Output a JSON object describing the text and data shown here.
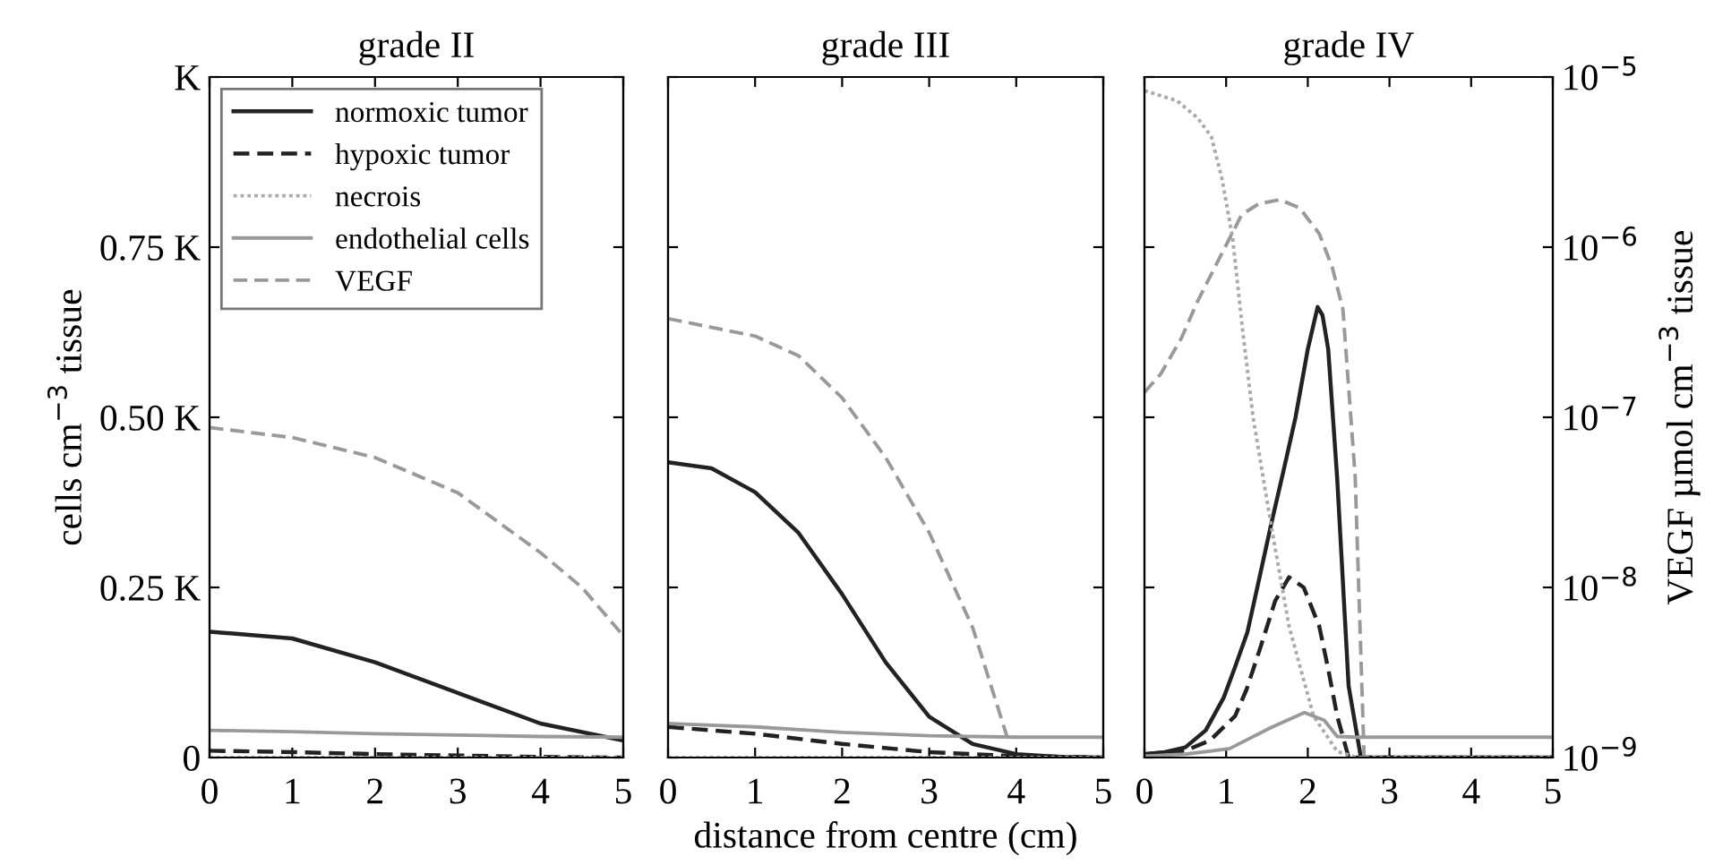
{
  "chart_data": [
    {
      "type": "line",
      "title": "grade II",
      "ylabel": "cells cm$^{−3}$ tissue",
      "xlim": [
        0,
        5
      ],
      "xticks": [
        0,
        1,
        2,
        3,
        4,
        5
      ],
      "ylim": [
        0,
        1
      ],
      "yticks": [
        0,
        {
          "value": 0.25,
          "label": "0.25 K"
        },
        {
          "value": 0.5,
          "label": "0.50 K"
        },
        {
          "value": 0.75,
          "label": "0.75 K"
        },
        {
          "value": 1,
          "label": "K"
        }
      ],
      "log": "y2",
      "y2lim": [
        1e-09,
        1e-05
      ],
      "legend": "top left",
      "grid": false,
      "series": [
        {
          "name": "normoxic tumor",
          "color": "#222222",
          "line_style": "solid",
          "x": [
            0,
            1,
            2,
            3,
            4,
            5
          ],
          "values": [
            0.185,
            0.175,
            0.14,
            0.095,
            0.05,
            0.025
          ]
        },
        {
          "name": "hypoxic tumor",
          "color": "#222222",
          "line_style": "dashed",
          "x": [
            0,
            1,
            2,
            3,
            4,
            5
          ],
          "values": [
            0.01,
            0.008,
            0.005,
            0.003,
            0.001,
            0
          ]
        },
        {
          "name": "necrois",
          "color": "#aaaaaa",
          "line_style": "dotted",
          "x": [
            0,
            5
          ],
          "values": [
            0,
            0
          ]
        },
        {
          "name": "endothelial cells",
          "color": "#999999",
          "line_style": "solid",
          "x": [
            0,
            1,
            2,
            3,
            4,
            5
          ],
          "values": [
            0.04,
            0.038,
            0.035,
            0.033,
            0.031,
            0.03
          ]
        },
        {
          "name": "VEGF",
          "color": "#999999",
          "line_style": "dashed",
          "axis": "y2",
          "x": [
            0,
            1,
            2,
            3,
            4,
            4.5,
            5
          ],
          "values": [
            8.7e-08,
            7.6e-08,
            5.8e-08,
            3.6e-08,
            1.6e-08,
            1e-08,
            5.2e-09
          ]
        }
      ]
    },
    {
      "type": "line",
      "title": "grade III",
      "xlabel": "distance from centre (cm)",
      "xlim": [
        0,
        5
      ],
      "xticks": [
        0,
        1,
        2,
        3,
        4,
        5
      ],
      "ylim": [
        0,
        1
      ],
      "log": "y2",
      "y2lim": [
        1e-09,
        1e-05
      ],
      "tick_labels": "x",
      "grid": false,
      "series": [
        {
          "color": "#222222",
          "line_style": "solid",
          "x": [
            0,
            0.5,
            1,
            1.5,
            2,
            2.5,
            3,
            3.5,
            4,
            4.5,
            5
          ],
          "values": [
            0.434,
            0.425,
            0.39,
            0.33,
            0.24,
            0.14,
            0.06,
            0.02,
            0.005,
            0.001,
            0
          ]
        },
        {
          "color": "#222222",
          "line_style": "dashed",
          "x": [
            0,
            1,
            2,
            3,
            4,
            5
          ],
          "values": [
            0.045,
            0.035,
            0.02,
            0.008,
            0.002,
            0
          ]
        },
        {
          "color": "#aaaaaa",
          "line_style": "dotted",
          "x": [
            0,
            5
          ],
          "values": [
            0,
            0
          ]
        },
        {
          "color": "#999999",
          "line_style": "solid",
          "x": [
            0,
            1,
            2,
            3,
            4,
            5
          ],
          "values": [
            0.05,
            0.045,
            0.037,
            0.032,
            0.03,
            0.03
          ]
        },
        {
          "color": "#999999",
          "line_style": "dashed",
          "axis": "y2",
          "x": [
            0,
            1,
            1.5,
            2,
            2.5,
            3,
            3.5,
            3.9
          ],
          "values": [
            3.8e-07,
            3e-07,
            2.3e-07,
            1.3e-07,
            5.8e-08,
            2.1e-08,
            5.8e-09,
            1.3e-09
          ]
        }
      ]
    },
    {
      "type": "line",
      "title": "grade IV",
      "y2label": "VEGF µmol cm$^{−3}$ tissue",
      "xlim": [
        0,
        5
      ],
      "xticks": [
        0,
        1,
        2,
        3,
        4,
        5
      ],
      "ylim": [
        0,
        1
      ],
      "log": "y2",
      "y2lim": [
        1e-09,
        1e-05
      ],
      "y2ticks": [
        {
          "value": 1e-09,
          "label": "10$^{−9}$"
        },
        {
          "value": 1e-08,
          "label": "10$^{−8}$"
        },
        {
          "value": 1e-07,
          "label": "10$^{−7}$"
        },
        {
          "value": 1e-06,
          "label": "10$^{−6}$"
        },
        {
          "value": 1e-05,
          "label": "10$^{−5}$"
        }
      ],
      "grid": false,
      "series": [
        {
          "color": "#222222",
          "line_style": "solid",
          "x": [
            0,
            0.25,
            0.5,
            0.75,
            0.97,
            1.1,
            1.26,
            1.4,
            1.55,
            1.7,
            1.85,
            2.0,
            2.12,
            2.18,
            2.25,
            2.36,
            2.5,
            2.65,
            5
          ],
          "values": [
            0.005,
            0.008,
            0.015,
            0.04,
            0.088,
            0.13,
            0.184,
            0.26,
            0.342,
            0.42,
            0.5,
            0.6,
            0.662,
            0.65,
            0.6,
            0.41,
            0.105,
            0,
            0
          ]
        },
        {
          "color": "#222222",
          "line_style": "dashed",
          "x": [
            0,
            0.5,
            0.8,
            1.11,
            1.25,
            1.41,
            1.6,
            1.77,
            1.95,
            2.14,
            2.25,
            2.36,
            2.5,
            5
          ],
          "values": [
            0.005,
            0.01,
            0.025,
            0.061,
            0.1,
            0.158,
            0.23,
            0.265,
            0.25,
            0.193,
            0.13,
            0.061,
            0,
            0
          ]
        },
        {
          "color": "#aaaaaa",
          "line_style": "dotted",
          "x": [
            0,
            0.4,
            0.65,
            0.82,
            0.95,
            1.08,
            1.2,
            1.33,
            1.55,
            1.77,
            2.07,
            2.36,
            2.6,
            5
          ],
          "values": [
            0.98,
            0.965,
            0.94,
            0.912,
            0.85,
            0.763,
            0.63,
            0.5,
            0.342,
            0.193,
            0.061,
            0.009,
            0,
            0
          ]
        },
        {
          "color": "#999999",
          "line_style": "solid",
          "x": [
            0,
            0.5,
            1.04,
            1.55,
            1.96,
            2.2,
            2.36,
            2.6,
            5
          ],
          "values": [
            0.002,
            0.005,
            0.013,
            0.044,
            0.066,
            0.055,
            0.031,
            0.03,
            0.03
          ]
        },
        {
          "color": "#999999",
          "line_style": "dashed",
          "axis": "y2",
          "x": [
            0,
            0.2,
            0.45,
            0.65,
            0.89,
            1.19,
            1.4,
            1.66,
            1.9,
            2.14,
            2.3,
            2.43,
            2.58,
            2.65,
            2.69
          ],
          "values": [
            1.4e-07,
            1.8e-07,
            2.9e-07,
            4.8e-07,
            8.1e-07,
            1.55e-06,
            1.8e-06,
            1.9e-06,
            1.7e-06,
            1.2e-06,
            7.6e-07,
            4.3e-07,
            4.5e-08,
            4e-09,
            1e-09
          ]
        }
      ]
    }
  ]
}
